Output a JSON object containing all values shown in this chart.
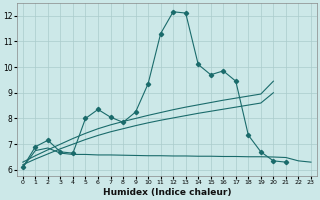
{
  "xlabel": "Humidex (Indice chaleur)",
  "xlim": [
    -0.5,
    23.5
  ],
  "ylim": [
    5.75,
    12.5
  ],
  "xticks": [
    0,
    1,
    2,
    3,
    4,
    5,
    6,
    7,
    8,
    9,
    10,
    11,
    12,
    13,
    14,
    15,
    16,
    17,
    18,
    19,
    20,
    21,
    22,
    23
  ],
  "yticks": [
    6,
    7,
    8,
    9,
    10,
    11,
    12
  ],
  "bg_color": "#cce8e8",
  "grid_color": "#aacccc",
  "line_color": "#1a6b6b",
  "line1_x": [
    0,
    1,
    2,
    3,
    4,
    5,
    6,
    7,
    8,
    9,
    10,
    11,
    12,
    13,
    14,
    15,
    16,
    17,
    18,
    19,
    20,
    21
  ],
  "line1_y": [
    6.1,
    6.9,
    7.15,
    6.7,
    6.65,
    8.0,
    8.35,
    8.05,
    7.85,
    8.25,
    9.35,
    11.3,
    12.15,
    12.1,
    10.1,
    9.7,
    9.85,
    9.45,
    7.35,
    6.7,
    6.35,
    6.3
  ],
  "line2_x": [
    0,
    1,
    2,
    3,
    4,
    5,
    6,
    7,
    8,
    9,
    10,
    11,
    12,
    13,
    14,
    15,
    16,
    17,
    18,
    19,
    20
  ],
  "line2_y": [
    6.3,
    6.55,
    6.78,
    7.0,
    7.22,
    7.42,
    7.6,
    7.75,
    7.88,
    8.0,
    8.12,
    8.23,
    8.34,
    8.44,
    8.53,
    8.62,
    8.71,
    8.79,
    8.87,
    8.95,
    9.45
  ],
  "line3_x": [
    0,
    1,
    2,
    3,
    4,
    5,
    6,
    7,
    8,
    9,
    10,
    11,
    12,
    13,
    14,
    15,
    16,
    17,
    18,
    19,
    20
  ],
  "line3_y": [
    6.2,
    6.42,
    6.62,
    6.82,
    7.0,
    7.18,
    7.34,
    7.48,
    7.6,
    7.72,
    7.83,
    7.93,
    8.02,
    8.11,
    8.2,
    8.28,
    8.36,
    8.44,
    8.52,
    8.6,
    9.0
  ],
  "line4_x": [
    0,
    1,
    2,
    3,
    4,
    5,
    6,
    7,
    8,
    9,
    10,
    11,
    12,
    13,
    14,
    15,
    16,
    17,
    18,
    19,
    20,
    21,
    22,
    23
  ],
  "line4_y": [
    6.1,
    6.75,
    6.85,
    6.65,
    6.6,
    6.6,
    6.58,
    6.58,
    6.57,
    6.56,
    6.55,
    6.55,
    6.54,
    6.54,
    6.53,
    6.53,
    6.52,
    6.52,
    6.51,
    6.51,
    6.5,
    6.48,
    6.35,
    6.3
  ]
}
